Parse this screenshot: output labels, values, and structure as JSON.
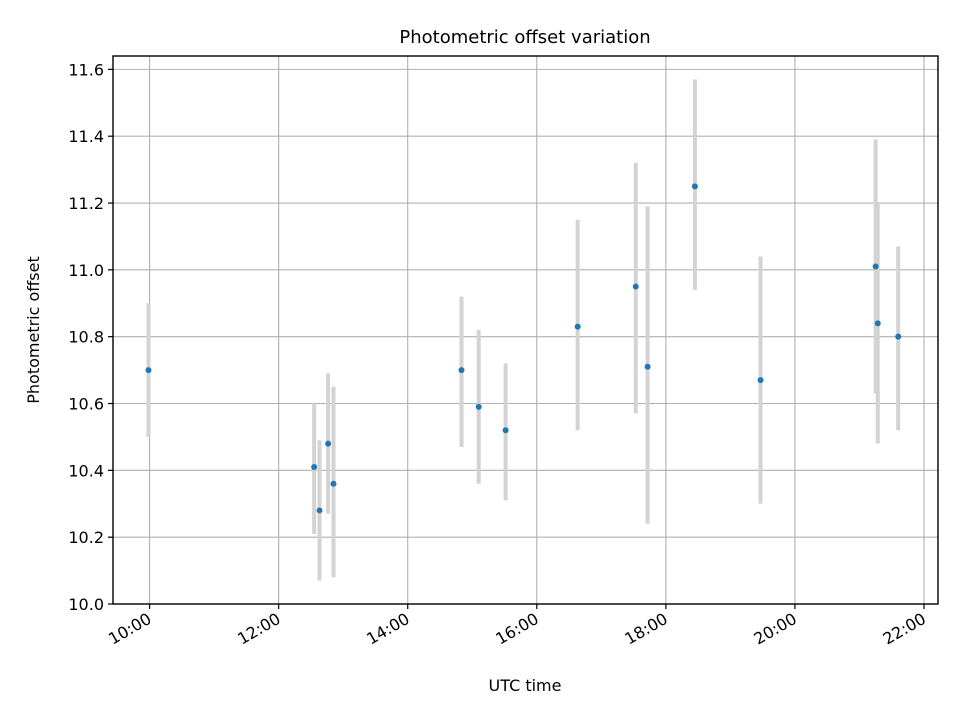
{
  "chart_data": {
    "type": "scatter",
    "title": "Photometric offset variation",
    "xlabel": "UTC time",
    "ylabel": "Photometric offset",
    "x_tick_labels": [
      "10:00",
      "12:00",
      "14:00",
      "16:00",
      "18:00",
      "20:00",
      "22:00"
    ],
    "y_tick_labels": [
      "10.0",
      "10.2",
      "10.4",
      "10.6",
      "10.8",
      "11.0",
      "11.2",
      "11.4",
      "11.6"
    ],
    "grid": true,
    "xlim": [
      "09:26",
      "22:13"
    ],
    "ylim": [
      10.0,
      11.64
    ],
    "series": [
      {
        "marker_color": "#1f77b4",
        "errorbar_color": "#d3d3d3",
        "points": [
          {
            "x": "09:59",
            "y": 10.7,
            "err_low": 10.5,
            "err_high": 10.9
          },
          {
            "x": "12:33",
            "y": 10.41,
            "err_low": 10.21,
            "err_high": 10.6
          },
          {
            "x": "12:38",
            "y": 10.28,
            "err_low": 10.07,
            "err_high": 10.49
          },
          {
            "x": "12:46",
            "y": 10.48,
            "err_low": 10.27,
            "err_high": 10.69
          },
          {
            "x": "12:51",
            "y": 10.36,
            "err_low": 10.08,
            "err_high": 10.65
          },
          {
            "x": "14:50",
            "y": 10.7,
            "err_low": 10.47,
            "err_high": 10.92
          },
          {
            "x": "15:06",
            "y": 10.59,
            "err_low": 10.36,
            "err_high": 10.82
          },
          {
            "x": "15:31",
            "y": 10.52,
            "err_low": 10.31,
            "err_high": 10.72
          },
          {
            "x": "16:38",
            "y": 10.83,
            "err_low": 10.52,
            "err_high": 11.15
          },
          {
            "x": "17:32",
            "y": 10.95,
            "err_low": 10.57,
            "err_high": 11.32
          },
          {
            "x": "17:43",
            "y": 10.71,
            "err_low": 10.24,
            "err_high": 11.19
          },
          {
            "x": "18:27",
            "y": 11.25,
            "err_low": 10.94,
            "err_high": 11.57
          },
          {
            "x": "19:28",
            "y": 10.67,
            "err_low": 10.3,
            "err_high": 11.04
          },
          {
            "x": "21:15",
            "y": 11.01,
            "err_low": 10.63,
            "err_high": 11.39
          },
          {
            "x": "21:17",
            "y": 10.84,
            "err_low": 10.48,
            "err_high": 11.2
          },
          {
            "x": "21:36",
            "y": 10.8,
            "err_low": 10.52,
            "err_high": 11.07
          }
        ]
      }
    ]
  }
}
